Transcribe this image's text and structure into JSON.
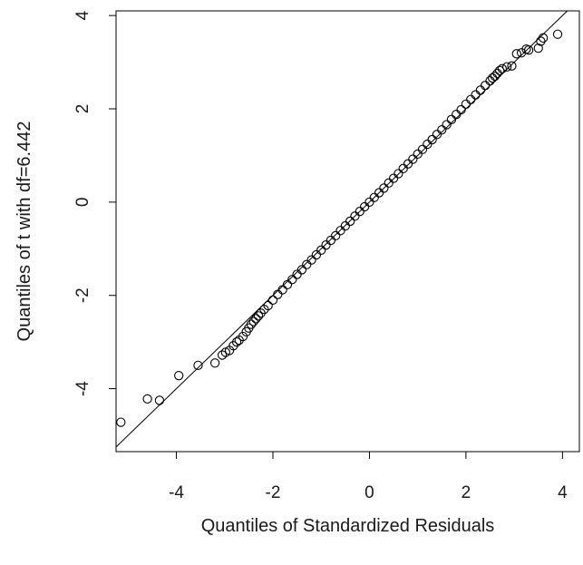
{
  "chart_data": {
    "type": "scatter",
    "xlabel": "Quantiles of Standardized Residuals",
    "ylabel": "Quantiles of t with df=6.442",
    "xlim": [
      -5.25,
      4.35
    ],
    "ylim": [
      -5.35,
      4.1
    ],
    "xticks": [
      -4,
      -2,
      0,
      2,
      4
    ],
    "xtick_labels": [
      "-4",
      "-2",
      "0",
      "2",
      "4"
    ],
    "yticks": [
      -4,
      -2,
      0,
      2,
      4
    ],
    "ytick_labels": [
      "-4",
      "-2",
      "0",
      "2",
      "4"
    ],
    "grid": false,
    "reference_line": {
      "slope": 1,
      "intercept": 0
    },
    "marker": "open-circle",
    "colors": {
      "points": "#000000",
      "line": "#000000",
      "axis": "#000000"
    },
    "series": [
      {
        "points": [
          [
            -5.15,
            -4.72
          ],
          [
            -4.6,
            -4.22
          ],
          [
            -4.35,
            -4.25
          ],
          [
            -3.95,
            -3.72
          ],
          [
            -3.55,
            -3.5
          ],
          [
            -3.2,
            -3.45
          ],
          [
            -3.05,
            -3.28
          ],
          [
            -2.98,
            -3.22
          ],
          [
            -2.9,
            -3.18
          ],
          [
            -2.82,
            -3.08
          ],
          [
            -2.75,
            -3.0
          ],
          [
            -2.7,
            -2.96
          ],
          [
            -2.62,
            -2.88
          ],
          [
            -2.55,
            -2.78
          ],
          [
            -2.5,
            -2.7
          ],
          [
            -2.45,
            -2.62
          ],
          [
            -2.4,
            -2.56
          ],
          [
            -2.35,
            -2.5
          ],
          [
            -2.3,
            -2.44
          ],
          [
            -2.25,
            -2.38
          ],
          [
            -2.18,
            -2.3
          ],
          [
            -2.1,
            -2.22
          ],
          [
            -2.0,
            -2.1
          ],
          [
            -1.9,
            -1.98
          ],
          [
            -1.8,
            -1.88
          ],
          [
            -1.7,
            -1.77
          ],
          [
            -1.6,
            -1.66
          ],
          [
            -1.5,
            -1.55
          ],
          [
            -1.4,
            -1.45
          ],
          [
            -1.3,
            -1.34
          ],
          [
            -1.2,
            -1.24
          ],
          [
            -1.1,
            -1.13
          ],
          [
            -1.0,
            -1.03
          ],
          [
            -0.9,
            -0.92
          ],
          [
            -0.8,
            -0.82
          ],
          [
            -0.7,
            -0.72
          ],
          [
            -0.6,
            -0.61
          ],
          [
            -0.5,
            -0.51
          ],
          [
            -0.4,
            -0.41
          ],
          [
            -0.3,
            -0.3
          ],
          [
            -0.2,
            -0.2
          ],
          [
            -0.1,
            -0.1
          ],
          [
            0.0,
            0.0
          ],
          [
            0.1,
            0.1
          ],
          [
            0.2,
            0.2
          ],
          [
            0.3,
            0.3
          ],
          [
            0.4,
            0.41
          ],
          [
            0.5,
            0.51
          ],
          [
            0.6,
            0.61
          ],
          [
            0.7,
            0.72
          ],
          [
            0.8,
            0.82
          ],
          [
            0.9,
            0.92
          ],
          [
            1.0,
            1.03
          ],
          [
            1.1,
            1.13
          ],
          [
            1.2,
            1.24
          ],
          [
            1.3,
            1.34
          ],
          [
            1.4,
            1.45
          ],
          [
            1.5,
            1.55
          ],
          [
            1.6,
            1.66
          ],
          [
            1.7,
            1.77
          ],
          [
            1.8,
            1.88
          ],
          [
            1.9,
            1.98
          ],
          [
            2.0,
            2.1
          ],
          [
            2.1,
            2.2
          ],
          [
            2.2,
            2.3
          ],
          [
            2.3,
            2.4
          ],
          [
            2.4,
            2.5
          ],
          [
            2.5,
            2.6
          ],
          [
            2.55,
            2.66
          ],
          [
            2.6,
            2.7
          ],
          [
            2.65,
            2.76
          ],
          [
            2.7,
            2.82
          ],
          [
            2.75,
            2.86
          ],
          [
            2.85,
            2.9
          ],
          [
            2.95,
            2.92
          ],
          [
            3.05,
            3.18
          ],
          [
            3.15,
            3.2
          ],
          [
            3.25,
            3.28
          ],
          [
            3.3,
            3.26
          ],
          [
            3.5,
            3.3
          ],
          [
            3.55,
            3.45
          ],
          [
            3.6,
            3.52
          ],
          [
            3.9,
            3.6
          ]
        ]
      }
    ]
  }
}
